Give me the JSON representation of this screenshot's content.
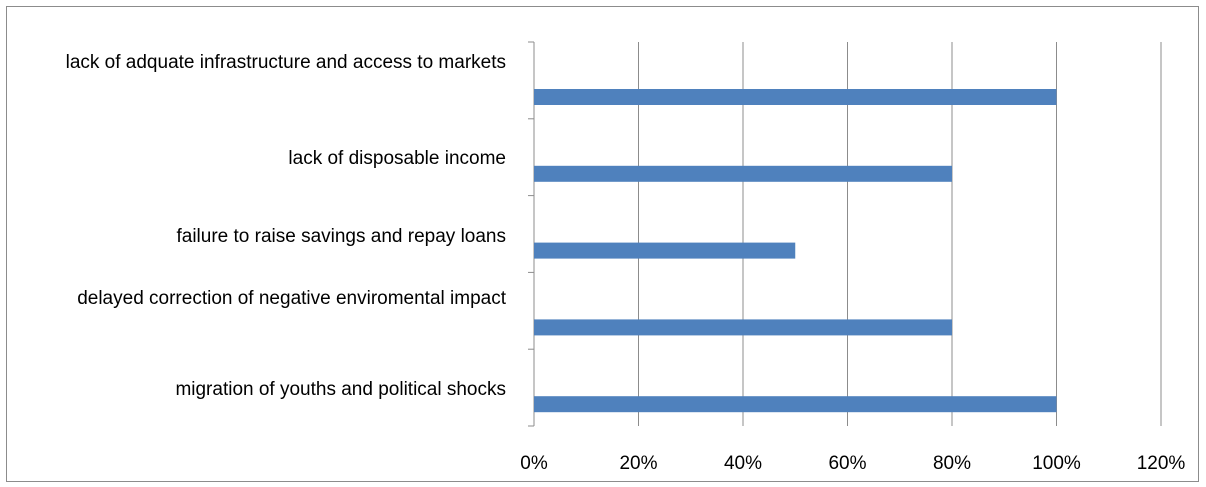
{
  "chart_data": {
    "type": "bar",
    "orientation": "horizontal",
    "categories": [
      "lack of adquate infrastructure and access to markets",
      "lack of disposable income",
      "failure to raise savings and repay loans",
      "delayed correction of negative enviromental impact",
      "migration of youths and political shocks"
    ],
    "values": [
      1.0,
      0.8,
      0.5,
      0.8,
      1.0
    ],
    "xlim": [
      0,
      1.2
    ],
    "x_ticks": [
      0,
      0.2,
      0.4,
      0.6,
      0.8,
      1.0,
      1.2
    ],
    "x_tick_labels": [
      "0%",
      "20%",
      "40%",
      "60%",
      "80%",
      "100%",
      "120%"
    ],
    "title": "",
    "xlabel": "",
    "ylabel": "",
    "grid": "vertical",
    "legend": "none",
    "bar_color": "#4f81bd",
    "gridline_color": "#8c8c8c"
  }
}
